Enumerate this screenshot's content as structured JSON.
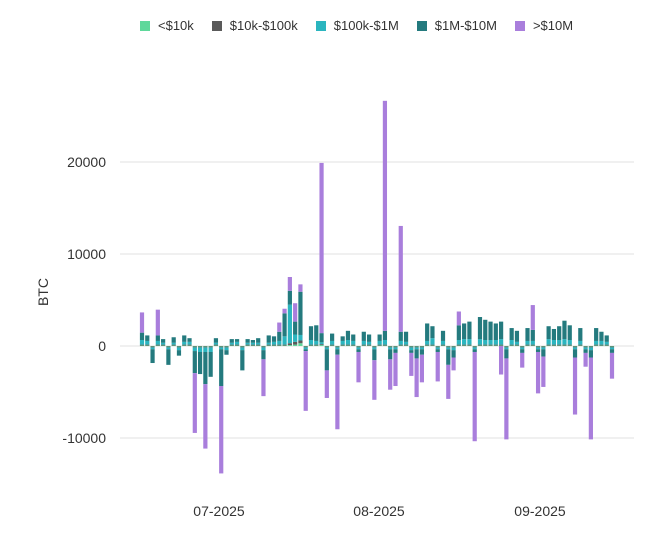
{
  "chart_data": {
    "type": "bar",
    "stacked": true,
    "title": "",
    "xlabel": "",
    "ylabel": "BTC",
    "ylim": [
      -15000,
      27000
    ],
    "yticks": [
      -10000,
      0,
      10000,
      20000
    ],
    "yticks_labels": [
      "-10000",
      "0",
      "10000",
      "20000"
    ],
    "xticks_labels": [
      "07-2025",
      "08-2025",
      "09-2025"
    ],
    "grid": "horizontal",
    "legend_position": "top",
    "series": [
      {
        "name": "<$10k",
        "color": "#5fd89b",
        "values": [
          50,
          50,
          -50,
          50,
          50,
          -50,
          50,
          -50,
          50,
          50,
          -50,
          -50,
          -50,
          -50,
          50,
          -50,
          -50,
          50,
          50,
          -50,
          50,
          50,
          50,
          -50,
          50,
          50,
          50,
          50,
          100,
          150,
          300,
          -50,
          50,
          50,
          100,
          -50,
          50,
          -50,
          50,
          50,
          50,
          -50,
          50,
          50,
          -50,
          50,
          50,
          -50,
          -50,
          50,
          50,
          -50,
          -50,
          -50,
          50,
          50,
          -50,
          50,
          -50,
          -50,
          50,
          50,
          50,
          -50,
          50,
          50,
          50,
          50,
          50,
          -50,
          50,
          50,
          -50,
          50,
          50,
          -50,
          -50,
          50,
          50,
          50,
          50,
          50,
          -50,
          50,
          -50,
          -50,
          50,
          50,
          50,
          -50
        ]
      },
      {
        "name": "$10k-$100k",
        "color": "#5a5a5a",
        "values": [
          100,
          100,
          -100,
          100,
          100,
          -100,
          100,
          -100,
          100,
          100,
          -100,
          -100,
          -100,
          -100,
          100,
          -100,
          -100,
          100,
          100,
          -100,
          100,
          100,
          100,
          -100,
          100,
          100,
          100,
          100,
          200,
          300,
          300,
          -100,
          100,
          100,
          100,
          -100,
          100,
          -100,
          100,
          100,
          100,
          -100,
          100,
          100,
          -100,
          100,
          100,
          -100,
          -100,
          100,
          100,
          -100,
          -100,
          -100,
          100,
          100,
          -100,
          100,
          -100,
          -100,
          100,
          100,
          100,
          -100,
          100,
          100,
          100,
          100,
          100,
          -100,
          100,
          100,
          -100,
          100,
          100,
          -100,
          -100,
          100,
          100,
          100,
          100,
          100,
          -100,
          100,
          -100,
          -100,
          100,
          100,
          100,
          -100
        ]
      },
      {
        "name": "$100k-$1M",
        "color": "#2bb5bf",
        "values": [
          500,
          400,
          -200,
          400,
          200,
          -200,
          200,
          -300,
          300,
          300,
          -400,
          -500,
          -500,
          -500,
          200,
          -200,
          -300,
          200,
          300,
          -300,
          200,
          200,
          200,
          -300,
          200,
          300,
          400,
          900,
          4200,
          800,
          600,
          -200,
          500,
          400,
          200,
          -200,
          400,
          -200,
          400,
          500,
          400,
          -200,
          400,
          300,
          -200,
          400,
          500,
          -200,
          -200,
          400,
          300,
          -300,
          -200,
          -200,
          400,
          700,
          -200,
          400,
          -200,
          -300,
          500,
          600,
          600,
          -200,
          600,
          500,
          500,
          500,
          600,
          -200,
          500,
          300,
          -200,
          400,
          400,
          -200,
          -200,
          600,
          500,
          500,
          600,
          500,
          -200,
          400,
          -200,
          -300,
          400,
          400,
          300,
          -200
        ]
      },
      {
        "name": "$1M-$10M",
        "color": "#247a7e",
        "values": [
          800,
          600,
          -1500,
          600,
          400,
          -1700,
          600,
          -600,
          700,
          400,
          -2400,
          -2400,
          -3500,
          -2700,
          500,
          -4000,
          -500,
          400,
          300,
          -2200,
          400,
          300,
          500,
          -1000,
          800,
          600,
          1000,
          2500,
          1500,
          1400,
          4700,
          -200,
          1500,
          1700,
          1000,
          -2300,
          800,
          -600,
          500,
          1000,
          700,
          -300,
          1000,
          800,
          -1200,
          700,
          1000,
          -1100,
          -400,
          1000,
          1100,
          -300,
          -1000,
          -600,
          1900,
          1300,
          -300,
          1100,
          -1700,
          -800,
          1600,
          1700,
          1900,
          -300,
          2400,
          2200,
          2000,
          1800,
          1900,
          -1000,
          1300,
          1200,
          -400,
          1400,
          1200,
          -300,
          -800,
          1400,
          1200,
          1500,
          2000,
          1600,
          -900,
          1400,
          -400,
          -800,
          1400,
          1000,
          700,
          -400
        ]
      },
      {
        "name": ">$10M",
        "color": "#a97edc",
        "values": [
          2200,
          0,
          0,
          2800,
          0,
          0,
          0,
          0,
          0,
          0,
          -6500,
          0,
          -7000,
          0,
          0,
          -9500,
          0,
          0,
          0,
          0,
          0,
          0,
          0,
          -4000,
          0,
          0,
          1000,
          500,
          1500,
          2000,
          800,
          -6500,
          0,
          0,
          18500,
          -3000,
          0,
          -8100,
          0,
          0,
          0,
          -3300,
          0,
          0,
          -4300,
          0,
          25000,
          -3300,
          -3600,
          11500,
          0,
          -2500,
          -4200,
          -3000,
          0,
          0,
          -3200,
          0,
          -3700,
          -1400,
          1500,
          0,
          0,
          -9700,
          0,
          0,
          0,
          0,
          -3100,
          -8800,
          0,
          0,
          -1600,
          0,
          2700,
          -4500,
          -3300,
          0,
          0,
          0,
          0,
          0,
          -6200,
          0,
          -1500,
          -8900,
          0,
          0,
          0,
          -2800
        ]
      }
    ]
  }
}
